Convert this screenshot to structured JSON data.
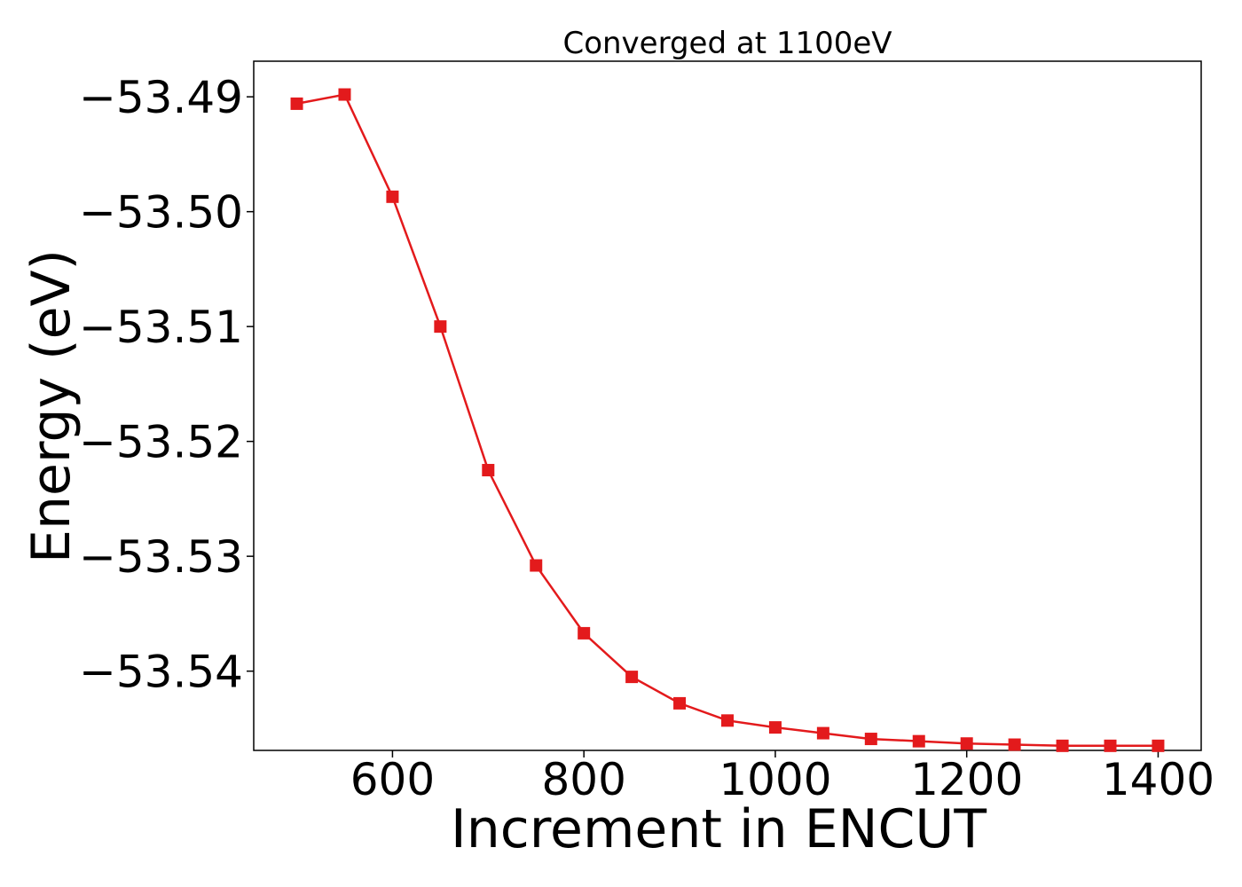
{
  "chart_data": {
    "type": "line",
    "title": "Converged at 1100eV",
    "xlabel": "Increment in ENCUT",
    "ylabel": "Energy (eV)",
    "xlim": [
      455,
      1445
    ],
    "ylim": [
      -53.5469,
      -53.4869
    ],
    "x_ticks": [
      600,
      800,
      1000,
      1200,
      1400
    ],
    "x_tick_labels": [
      "600",
      "800",
      "1000",
      "1200",
      "1400"
    ],
    "y_ticks": [
      -53.49,
      -53.5,
      -53.51,
      -53.52,
      -53.53,
      -53.54
    ],
    "y_tick_labels": [
      "−53.49",
      "−53.50",
      "−53.51",
      "−53.52",
      "−53.53",
      "−53.54"
    ],
    "grid": false,
    "series": [
      {
        "color": "#e31a1c",
        "marker": "square",
        "x": [
          500,
          550,
          600,
          650,
          700,
          750,
          800,
          850,
          900,
          950,
          1000,
          1050,
          1100,
          1150,
          1200,
          1250,
          1300,
          1350,
          1400
        ],
        "y": [
          -53.4906,
          -53.4898,
          -53.4987,
          -53.51,
          -53.5225,
          -53.5308,
          -53.5367,
          -53.5405,
          -53.5428,
          -53.5443,
          -53.5449,
          -53.5454,
          -53.5459,
          -53.5461,
          -53.5463,
          -53.5464,
          -53.5465,
          -53.5465,
          -53.5465
        ]
      }
    ]
  }
}
